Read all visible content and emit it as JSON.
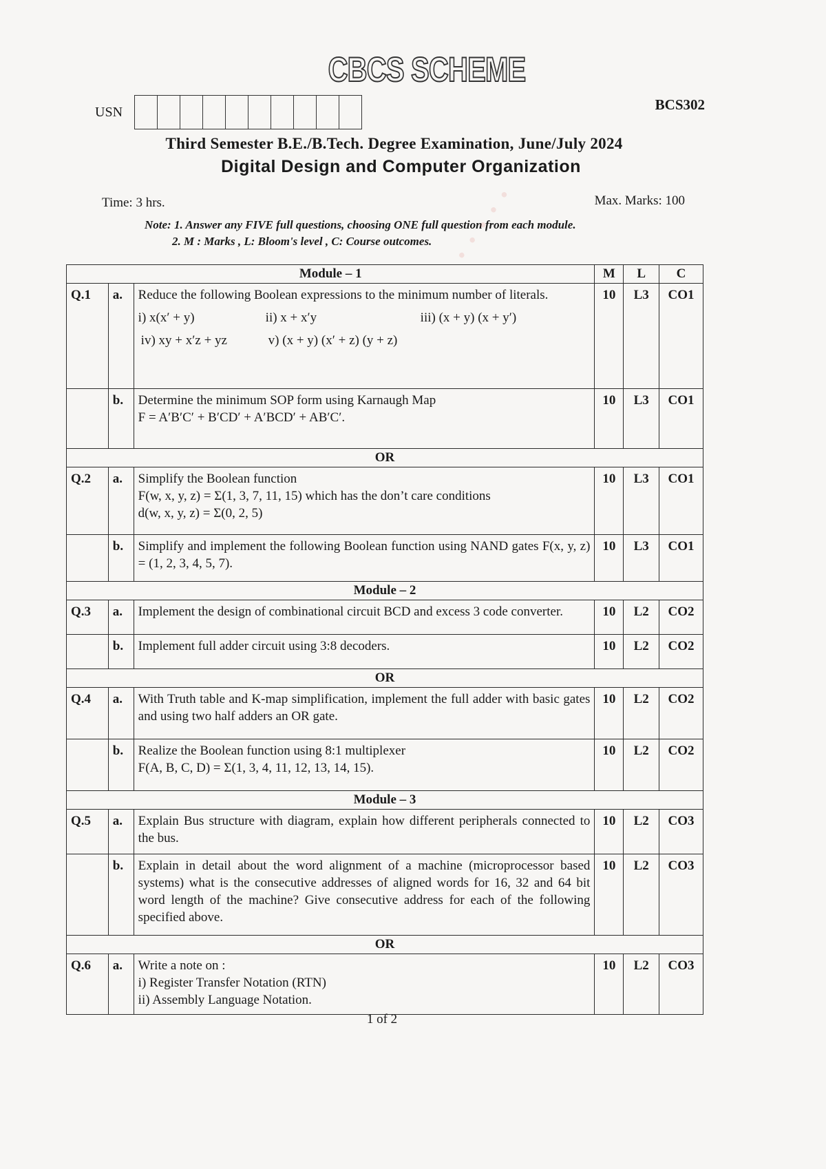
{
  "header": {
    "scheme_logo": "CBCS SCHEME",
    "usn_label": "USN",
    "usn_boxes": 10,
    "course_code": "BCS302",
    "exam_title": "Third Semester B.E./B.Tech. Degree Examination, June/July 2024",
    "subject": "Digital Design and Computer Organization",
    "time": "Time: 3 hrs.",
    "max_marks": "Max. Marks: 100",
    "note_1": "Note: 1. Answer any FIVE full questions, choosing ONE full question from each module.",
    "note_2": "2. M : Marks , L: Bloom's level , C: Course outcomes."
  },
  "table": {
    "columns": {
      "m": "M",
      "l": "L",
      "c": "C"
    },
    "rows": [
      {
        "type": "header",
        "text": "Module – 1",
        "cols": true,
        "h": 25
      },
      {
        "type": "q",
        "q": "Q.1",
        "sub": "a.",
        "text": "Reduce the following Boolean expressions to the minimum number of literals.",
        "options": [
          [
            "i) x(x′ + y)",
            "ii) x + x′y",
            "iii) (x + y) (x + y′)"
          ],
          [
            "iv) xy + x′z + yz",
            "v) (x + y) (x′ + z) (y + z)"
          ]
        ],
        "m": "10",
        "l": "L3",
        "c": "CO1",
        "h": 153
      },
      {
        "type": "q",
        "q": "",
        "sub": "b.",
        "text": "Determine the minimum SOP form using Karnaugh Map",
        "lines": [
          "F = A′B′C′ + B′CD′ + A′BCD′ + AB′C′."
        ],
        "m": "10",
        "l": "L3",
        "c": "CO1",
        "h": 87
      },
      {
        "type": "header",
        "text": "OR",
        "h": 27
      },
      {
        "type": "q",
        "q": "Q.2",
        "sub": "a.",
        "text": "Simplify the Boolean function",
        "lines": [
          "F(w, x, y, z) = Σ(1, 3, 7, 11, 15) which has the don’t care conditions",
          "d(w, x, y, z) = Σ(0, 2, 5)"
        ],
        "m": "10",
        "l": "L3",
        "c": "CO1",
        "h": 98
      },
      {
        "type": "q",
        "q": "",
        "sub": "b.",
        "text": "Simplify and implement the following Boolean function using NAND gates F(x, y, z) = (1, 2, 3, 4, 5, 7).",
        "m": "10",
        "l": "L3",
        "c": "CO1",
        "h": 68
      },
      {
        "type": "header",
        "text": "Module – 2",
        "h": 25
      },
      {
        "type": "q",
        "q": "Q.3",
        "sub": "a.",
        "text": "Implement the design of combinational circuit BCD and excess 3 code converter.",
        "m": "10",
        "l": "L2",
        "c": "CO2",
        "h": 50
      },
      {
        "type": "q",
        "q": "",
        "sub": "b.",
        "text": "Implement full adder circuit using 3:8 decoders.",
        "m": "10",
        "l": "L2",
        "c": "CO2",
        "h": 50
      },
      {
        "type": "header",
        "text": "OR",
        "h": 27
      },
      {
        "type": "q",
        "q": "Q.4",
        "sub": "a.",
        "text": "With Truth table and K-map simplification, implement the full adder with basic gates and using two half adders an OR gate.",
        "m": "10",
        "l": "L2",
        "c": "CO2",
        "h": 75
      },
      {
        "type": "q",
        "q": "",
        "sub": "b.",
        "text": "Realize the Boolean function using 8:1 multiplexer",
        "lines": [
          "F(A, B, C, D) = Σ(1, 3, 4, 11, 12, 13, 14, 15)."
        ],
        "m": "10",
        "l": "L2",
        "c": "CO2",
        "h": 75
      },
      {
        "type": "header",
        "text": "Module – 3",
        "h": 27
      },
      {
        "type": "q",
        "q": "Q.5",
        "sub": "a.",
        "text": "Explain Bus structure with diagram, explain how different peripherals connected to the bus.",
        "m": "10",
        "l": "L2",
        "c": "CO3",
        "h": 65
      },
      {
        "type": "q",
        "q": "",
        "sub": "b.",
        "text": "Explain in detail about the word alignment of a machine (microprocessor based systems) what is the consecutive addresses of aligned words for 16, 32 and 64 bit word length of the machine? Give consecutive address for each of the following specified above.",
        "m": "10",
        "l": "L2",
        "c": "CO3",
        "h": 118
      },
      {
        "type": "header",
        "text": "OR",
        "h": 27
      },
      {
        "type": "q",
        "q": "Q.6",
        "sub": "a.",
        "text": "Write a note on :",
        "lines": [
          "i)  Register Transfer Notation (RTN)",
          "ii) Assembly Language Notation."
        ],
        "m": "10",
        "l": "L2",
        "c": "CO3",
        "h": 88
      }
    ]
  },
  "footer": {
    "page": "1 of 2"
  }
}
